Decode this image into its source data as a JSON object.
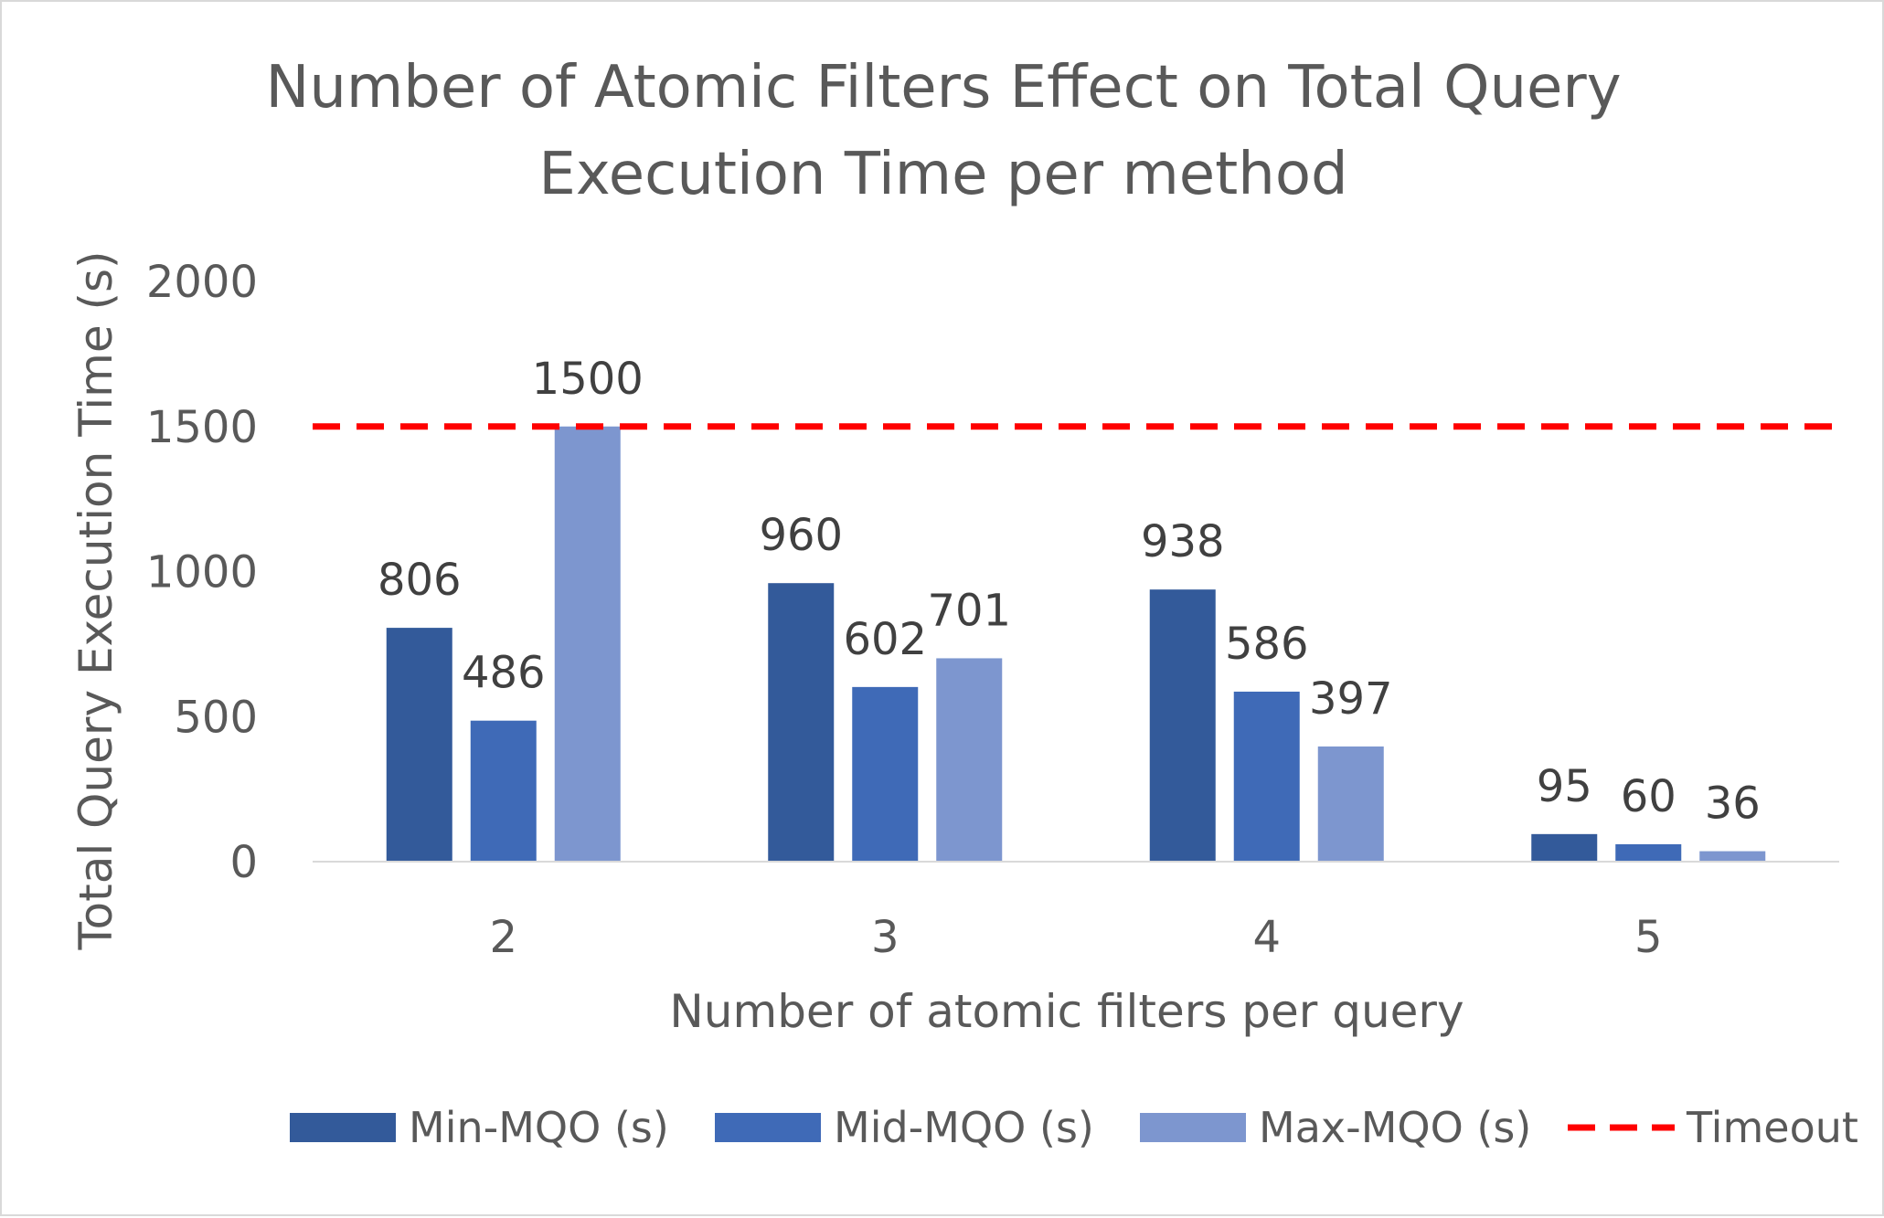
{
  "chart_data": {
    "type": "bar",
    "title": "Number of Atomic Filters Effect on Total Query Execution Time per method",
    "title_lines": [
      "Number of Atomic Filters Effect on Total Query",
      "Execution Time per method"
    ],
    "xlabel": "Number of atomic filters per query",
    "ylabel": "Total Query Execution Time (s)",
    "categories": [
      "2",
      "3",
      "4",
      "5"
    ],
    "ylim": [
      0,
      2000
    ],
    "yticks": [
      "0",
      "500",
      "1000",
      "1500",
      "2000"
    ],
    "grid": false,
    "legend_position": "bottom",
    "series": [
      {
        "name": "Min-MQO (s)",
        "values": [
          806,
          960,
          938,
          95
        ],
        "color": "#335A9A"
      },
      {
        "name": "Mid-MQO (s)",
        "values": [
          486,
          602,
          586,
          60
        ],
        "color": "#3F6AB7"
      },
      {
        "name": "Max-MQO (s)",
        "values": [
          1500,
          701,
          397,
          36
        ],
        "color": "#7D96CF"
      }
    ],
    "reference_line": {
      "name": "Timeout",
      "value": 1500,
      "color": "#FF0000",
      "style": "dashed"
    }
  }
}
